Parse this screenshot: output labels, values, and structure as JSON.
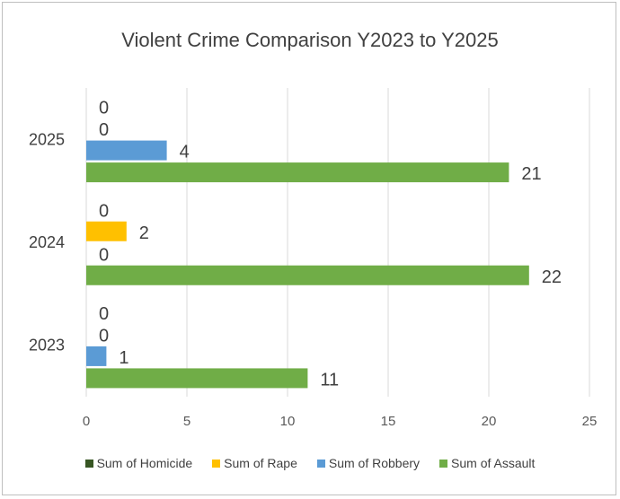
{
  "chart_data": {
    "type": "bar",
    "orientation": "horizontal",
    "title": "Violent Crime Comparison Y2023 to Y2025",
    "categories": [
      "2023",
      "2024",
      "2025"
    ],
    "series": [
      {
        "name": "Sum of Homicide",
        "color": "#375623",
        "values": [
          0,
          0,
          0
        ]
      },
      {
        "name": "Sum of Rape",
        "color": "#ffc000",
        "values": [
          0,
          2,
          0
        ]
      },
      {
        "name": "Sum of Robbery",
        "color": "#5b9bd5",
        "values": [
          1,
          0,
          4
        ]
      },
      {
        "name": "Sum of Assault",
        "color": "#70ad47",
        "values": [
          11,
          22,
          21
        ]
      }
    ],
    "xlim": [
      0,
      25
    ],
    "xticks": [
      0,
      5,
      10,
      15,
      20,
      25
    ],
    "grid": true,
    "legend_position": "bottom"
  }
}
